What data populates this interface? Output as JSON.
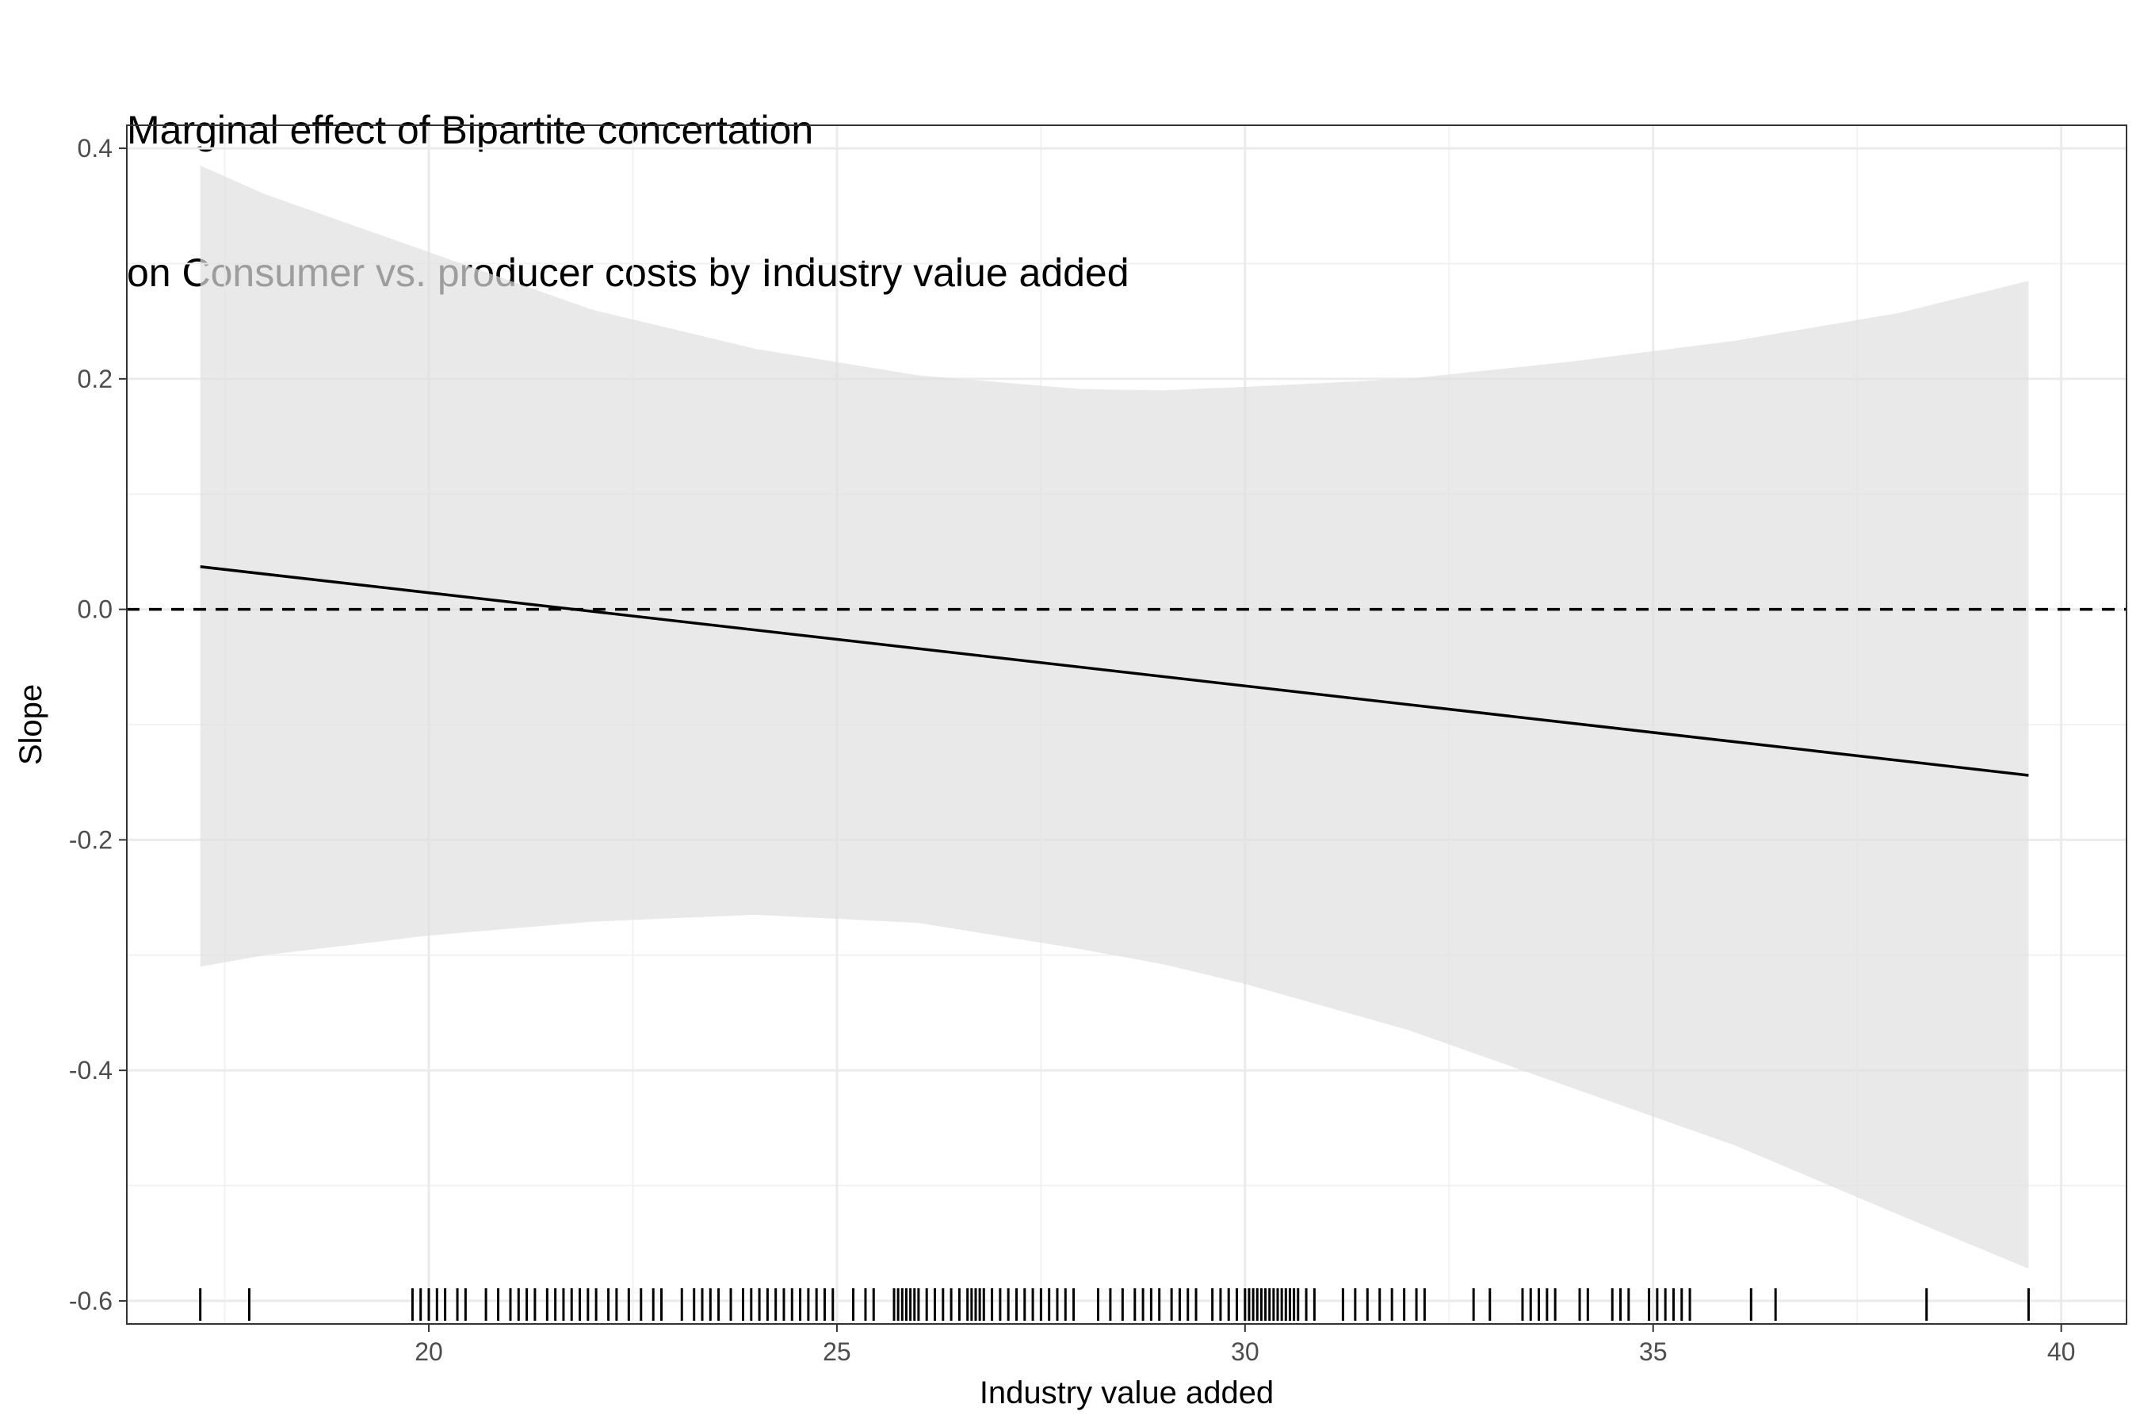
{
  "chart_data": {
    "type": "line",
    "title": "Marginal effect of Bipartite concertation",
    "subtitle": "on Consumer vs. producer costs by Industry value added",
    "xlabel": "Industry value added",
    "ylabel": "Slope",
    "xlim": [
      16.3,
      40.8
    ],
    "ylim": [
      -0.62,
      0.42
    ],
    "x_ticks": [
      20,
      25,
      30,
      35,
      40
    ],
    "y_ticks": [
      0.4,
      0.2,
      0.0,
      -0.2,
      -0.4,
      -0.6
    ],
    "x_tick_labels": [
      "20",
      "25",
      "30",
      "35",
      "40"
    ],
    "y_tick_labels": [
      "0.4",
      "0.2",
      "0.0",
      "-0.2",
      "-0.4",
      "-0.6"
    ],
    "grid": true,
    "reference_line": {
      "y": 0.0,
      "style": "dashed"
    },
    "series": [
      {
        "type": "line",
        "x": [
          17.2,
          39.6
        ],
        "y": [
          0.037,
          -0.144
        ]
      }
    ],
    "confidence_band": {
      "x": [
        17.2,
        18,
        20,
        22,
        24,
        26,
        28,
        29,
        30,
        32,
        34,
        36,
        38,
        39.6
      ],
      "upper": [
        0.385,
        0.36,
        0.31,
        0.26,
        0.226,
        0.203,
        0.191,
        0.19,
        0.193,
        0.2,
        0.215,
        0.233,
        0.257,
        0.285
      ],
      "lower": [
        -0.31,
        -0.3,
        -0.283,
        -0.271,
        -0.265,
        -0.272,
        -0.295,
        -0.308,
        -0.325,
        -0.365,
        -0.415,
        -0.465,
        -0.525,
        -0.572
      ]
    },
    "rug_x": [
      17.2,
      17.8,
      19.8,
      19.9,
      20.0,
      20.1,
      20.2,
      20.35,
      20.45,
      20.7,
      20.85,
      21.0,
      21.1,
      21.2,
      21.3,
      21.45,
      21.55,
      21.65,
      21.75,
      21.85,
      21.95,
      22.05,
      22.2,
      22.3,
      22.45,
      22.6,
      22.75,
      22.85,
      23.1,
      23.25,
      23.35,
      23.45,
      23.55,
      23.7,
      23.85,
      23.95,
      24.05,
      24.15,
      24.25,
      24.35,
      24.45,
      24.55,
      24.65,
      24.75,
      24.85,
      24.95,
      25.2,
      25.35,
      25.45,
      25.7,
      25.75,
      25.8,
      25.85,
      25.9,
      25.95,
      26.0,
      26.1,
      26.2,
      26.3,
      26.4,
      26.5,
      26.6,
      26.65,
      26.7,
      26.75,
      26.8,
      26.9,
      27.0,
      27.1,
      27.2,
      27.3,
      27.4,
      27.5,
      27.6,
      27.7,
      27.8,
      27.9,
      28.2,
      28.35,
      28.5,
      28.65,
      28.75,
      28.85,
      28.95,
      29.1,
      29.2,
      29.3,
      29.4,
      29.6,
      29.7,
      29.8,
      29.9,
      30.0,
      30.05,
      30.1,
      30.15,
      30.2,
      30.25,
      30.3,
      30.35,
      30.4,
      30.45,
      30.5,
      30.55,
      30.6,
      30.65,
      30.75,
      30.85,
      31.2,
      31.35,
      31.5,
      31.65,
      31.8,
      31.95,
      32.1,
      32.2,
      32.8,
      33.0,
      33.4,
      33.5,
      33.6,
      33.7,
      33.8,
      34.1,
      34.2,
      34.5,
      34.6,
      34.7,
      34.95,
      35.05,
      35.15,
      35.25,
      35.35,
      35.45,
      36.2,
      36.5,
      38.35,
      39.6
    ]
  }
}
